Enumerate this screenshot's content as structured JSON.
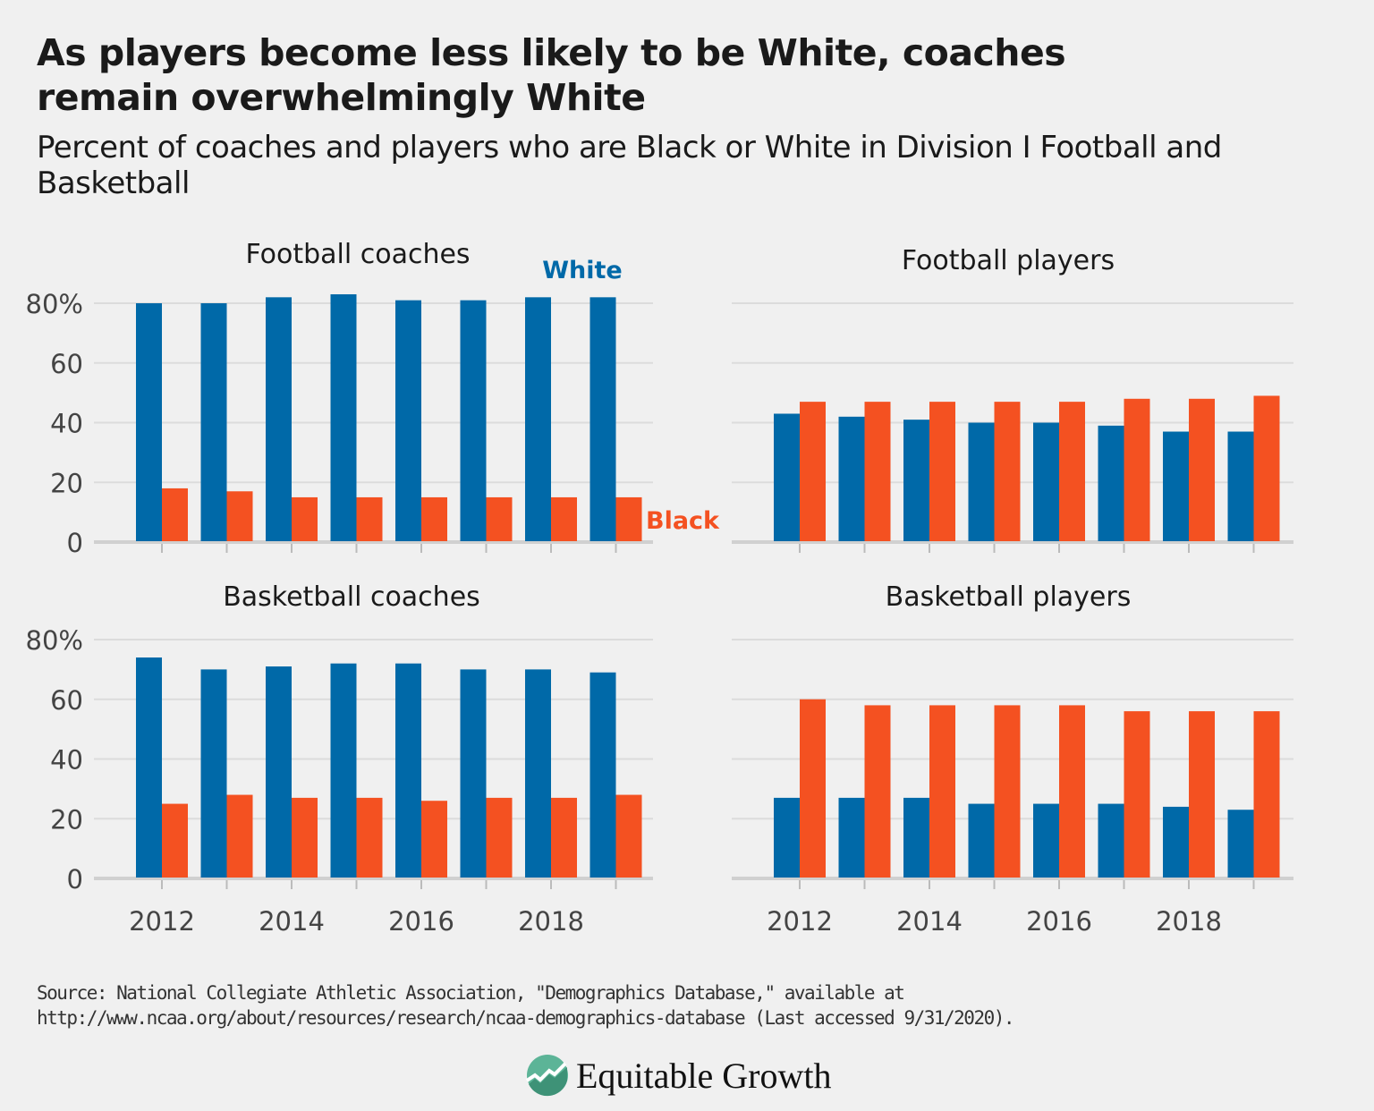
{
  "title": "As players become less likely to be White, coaches remain overwhelmingly White",
  "subtitle": "Percent of coaches and players who are Black or White in Division I Football and Basketball",
  "source_line1": "Source: National Collegiate Athletic Association, \"Demographics Database,\" available at",
  "source_line2": "http://www.ncaa.org/about/resources/research/ncaa-demographics-database (Last accessed 9/31/2020).",
  "logo_text": "Equitable Growth",
  "colors": {
    "White": "#0069a8",
    "Black": "#f45121",
    "background": "#f0f0f0",
    "grid": "#dcdcdc"
  },
  "legend_labels": {
    "white": "White",
    "black": "Black"
  },
  "chart_data": [
    {
      "type": "bar",
      "title": "Football coaches",
      "categories": [
        2012,
        2013,
        2014,
        2015,
        2016,
        2017,
        2018,
        2019
      ],
      "x_tick_labels": [
        "2012",
        "2014",
        "2016",
        "2018"
      ],
      "y_tick_labels": [
        "0",
        "20",
        "40",
        "60",
        "80%"
      ],
      "ylim": [
        0,
        80
      ],
      "grid": true,
      "series": [
        {
          "name": "White",
          "values": [
            80,
            80,
            82,
            83,
            81,
            81,
            82,
            82
          ]
        },
        {
          "name": "Black",
          "values": [
            18,
            17,
            15,
            15,
            15,
            15,
            15,
            15
          ]
        }
      ]
    },
    {
      "type": "bar",
      "title": "Football players",
      "categories": [
        2012,
        2013,
        2014,
        2015,
        2016,
        2017,
        2018,
        2019
      ],
      "x_tick_labels": [
        "2012",
        "2014",
        "2016",
        "2018"
      ],
      "y_tick_labels": [],
      "ylim": [
        0,
        80
      ],
      "grid": true,
      "series": [
        {
          "name": "White",
          "values": [
            43,
            42,
            41,
            40,
            40,
            39,
            37,
            37
          ]
        },
        {
          "name": "Black",
          "values": [
            47,
            47,
            47,
            47,
            47,
            48,
            48,
            49
          ]
        }
      ]
    },
    {
      "type": "bar",
      "title": "Basketball coaches",
      "categories": [
        2012,
        2013,
        2014,
        2015,
        2016,
        2017,
        2018,
        2019
      ],
      "x_tick_labels": [
        "2012",
        "2014",
        "2016",
        "2018"
      ],
      "y_tick_labels": [
        "0",
        "20",
        "40",
        "60",
        "80%"
      ],
      "ylim": [
        0,
        80
      ],
      "grid": true,
      "series": [
        {
          "name": "White",
          "values": [
            74,
            70,
            71,
            72,
            72,
            70,
            70,
            69
          ]
        },
        {
          "name": "Black",
          "values": [
            25,
            28,
            27,
            27,
            26,
            27,
            27,
            28
          ]
        }
      ]
    },
    {
      "type": "bar",
      "title": "Basketball players",
      "categories": [
        2012,
        2013,
        2014,
        2015,
        2016,
        2017,
        2018,
        2019
      ],
      "x_tick_labels": [
        "2012",
        "2014",
        "2016",
        "2018"
      ],
      "y_tick_labels": [],
      "ylim": [
        0,
        80
      ],
      "grid": true,
      "series": [
        {
          "name": "White",
          "values": [
            27,
            27,
            27,
            25,
            25,
            25,
            24,
            23
          ]
        },
        {
          "name": "Black",
          "values": [
            60,
            58,
            58,
            58,
            58,
            56,
            56,
            56
          ]
        }
      ]
    }
  ]
}
